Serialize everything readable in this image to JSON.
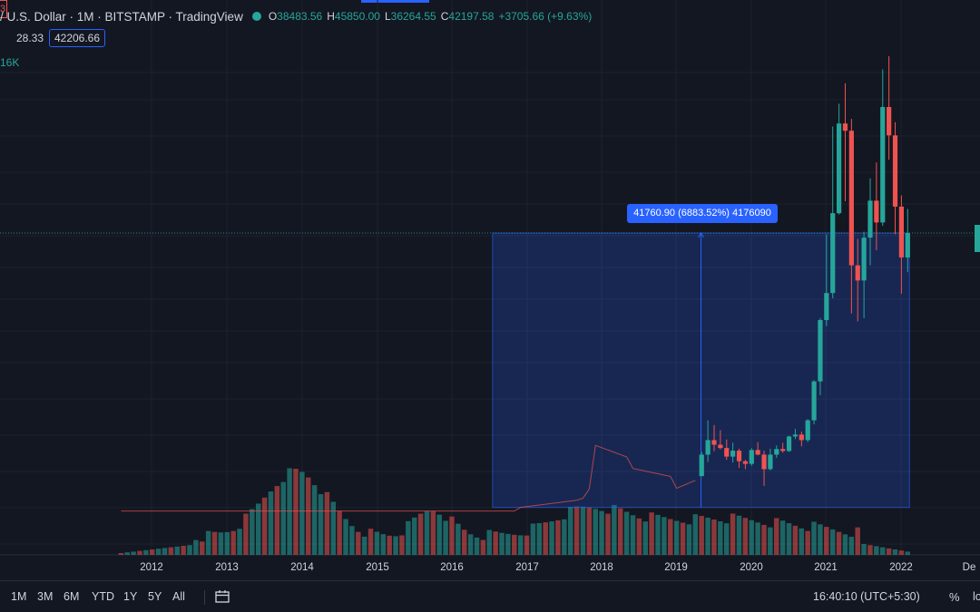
{
  "header": {
    "symbol_title": "/ U.S. Dollar · 1M · BITSTAMP · TradingView",
    "ohlc": [
      {
        "key": "O",
        "value": "38483.56"
      },
      {
        "key": "H",
        "value": "45850.00"
      },
      {
        "key": "L",
        "value": "36264.55"
      },
      {
        "key": "C",
        "value": "42197.58"
      }
    ],
    "change": "+3705.66 (+9.63%)",
    "bid_partial": "3",
    "spread": "28.33",
    "ask": "42206.66",
    "volume_partial": "16K"
  },
  "measure_label": "41760.90 (6883.52%) 4176090",
  "colors": {
    "up": "#26a69a",
    "down": "#ef5350",
    "accent": "#2962ff",
    "bg": "#131722"
  },
  "chart_data": {
    "type": "candlestick",
    "interval": "1M",
    "x_labels": [
      "2012",
      "2013",
      "2014",
      "2015",
      "2016",
      "2017",
      "2018",
      "2019",
      "2020",
      "2021",
      "2022",
      "De"
    ],
    "y_range": [
      0,
      69000
    ],
    "candles": [
      {
        "d": "2019-05",
        "o": 5350,
        "h": 9000,
        "l": 5300,
        "c": 8600
      },
      {
        "d": "2019-06",
        "o": 8600,
        "h": 13800,
        "l": 7500,
        "c": 10800
      },
      {
        "d": "2019-07",
        "o": 10800,
        "h": 13100,
        "l": 9100,
        "c": 10100
      },
      {
        "d": "2019-08",
        "o": 10100,
        "h": 12300,
        "l": 9400,
        "c": 9600
      },
      {
        "d": "2019-09",
        "o": 9600,
        "h": 10900,
        "l": 7800,
        "c": 8300
      },
      {
        "d": "2019-10",
        "o": 8300,
        "h": 10400,
        "l": 7400,
        "c": 9200
      },
      {
        "d": "2019-11",
        "o": 9200,
        "h": 9500,
        "l": 6600,
        "c": 7600
      },
      {
        "d": "2019-12",
        "o": 7600,
        "h": 7800,
        "l": 6400,
        "c": 7200
      },
      {
        "d": "2020-01",
        "o": 7200,
        "h": 9600,
        "l": 6900,
        "c": 9300
      },
      {
        "d": "2020-02",
        "o": 9300,
        "h": 10500,
        "l": 8500,
        "c": 8600
      },
      {
        "d": "2020-03",
        "o": 8600,
        "h": 9200,
        "l": 3850,
        "c": 6400
      },
      {
        "d": "2020-04",
        "o": 6400,
        "h": 9500,
        "l": 6200,
        "c": 8600
      },
      {
        "d": "2020-05",
        "o": 8600,
        "h": 10000,
        "l": 8100,
        "c": 9450
      },
      {
        "d": "2020-06",
        "o": 9450,
        "h": 10400,
        "l": 8900,
        "c": 9150
      },
      {
        "d": "2020-07",
        "o": 9150,
        "h": 11450,
        "l": 9000,
        "c": 11350
      },
      {
        "d": "2020-08",
        "o": 11350,
        "h": 12500,
        "l": 10950,
        "c": 11650
      },
      {
        "d": "2020-09",
        "o": 11650,
        "h": 12100,
        "l": 9850,
        "c": 10800
      },
      {
        "d": "2020-10",
        "o": 10800,
        "h": 14000,
        "l": 10500,
        "c": 13800
      },
      {
        "d": "2020-11",
        "o": 13800,
        "h": 19900,
        "l": 13200,
        "c": 19700
      },
      {
        "d": "2020-12",
        "o": 19700,
        "h": 29300,
        "l": 17600,
        "c": 29000
      },
      {
        "d": "2021-01",
        "o": 29000,
        "h": 42000,
        "l": 28100,
        "c": 33100
      },
      {
        "d": "2021-02",
        "o": 33100,
        "h": 58350,
        "l": 32300,
        "c": 45200
      },
      {
        "d": "2021-03",
        "o": 45200,
        "h": 61800,
        "l": 45000,
        "c": 58800
      },
      {
        "d": "2021-04",
        "o": 58800,
        "h": 64900,
        "l": 47000,
        "c": 57700
      },
      {
        "d": "2021-05",
        "o": 57700,
        "h": 59500,
        "l": 30000,
        "c": 37300
      },
      {
        "d": "2021-06",
        "o": 37300,
        "h": 41300,
        "l": 28800,
        "c": 35000
      },
      {
        "d": "2021-07",
        "o": 35000,
        "h": 42400,
        "l": 29300,
        "c": 41500
      },
      {
        "d": "2021-08",
        "o": 41500,
        "h": 50500,
        "l": 37300,
        "c": 47100
      },
      {
        "d": "2021-09",
        "o": 47100,
        "h": 52900,
        "l": 39600,
        "c": 43800
      },
      {
        "d": "2021-10",
        "o": 43800,
        "h": 67000,
        "l": 43300,
        "c": 61300
      },
      {
        "d": "2021-11",
        "o": 61300,
        "h": 69000,
        "l": 53300,
        "c": 57000
      },
      {
        "d": "2021-12",
        "o": 57000,
        "h": 59000,
        "l": 42000,
        "c": 46200
      },
      {
        "d": "2022-01",
        "o": 46200,
        "h": 47900,
        "l": 33000,
        "c": 38500
      },
      {
        "d": "2022-02",
        "o": 38483.56,
        "h": 45850,
        "l": 36264.55,
        "c": 42197.58
      }
    ],
    "measure": {
      "from": "2016-08",
      "to": "2022-02",
      "low": 600,
      "high": 42197.58
    }
  },
  "toolbar": {
    "ranges": [
      "1M",
      "3M",
      "6M",
      "YTD",
      "1Y",
      "5Y",
      "All"
    ],
    "clock": "16:40:10 (UTC+5:30)",
    "percent": "%",
    "log": "lo"
  }
}
